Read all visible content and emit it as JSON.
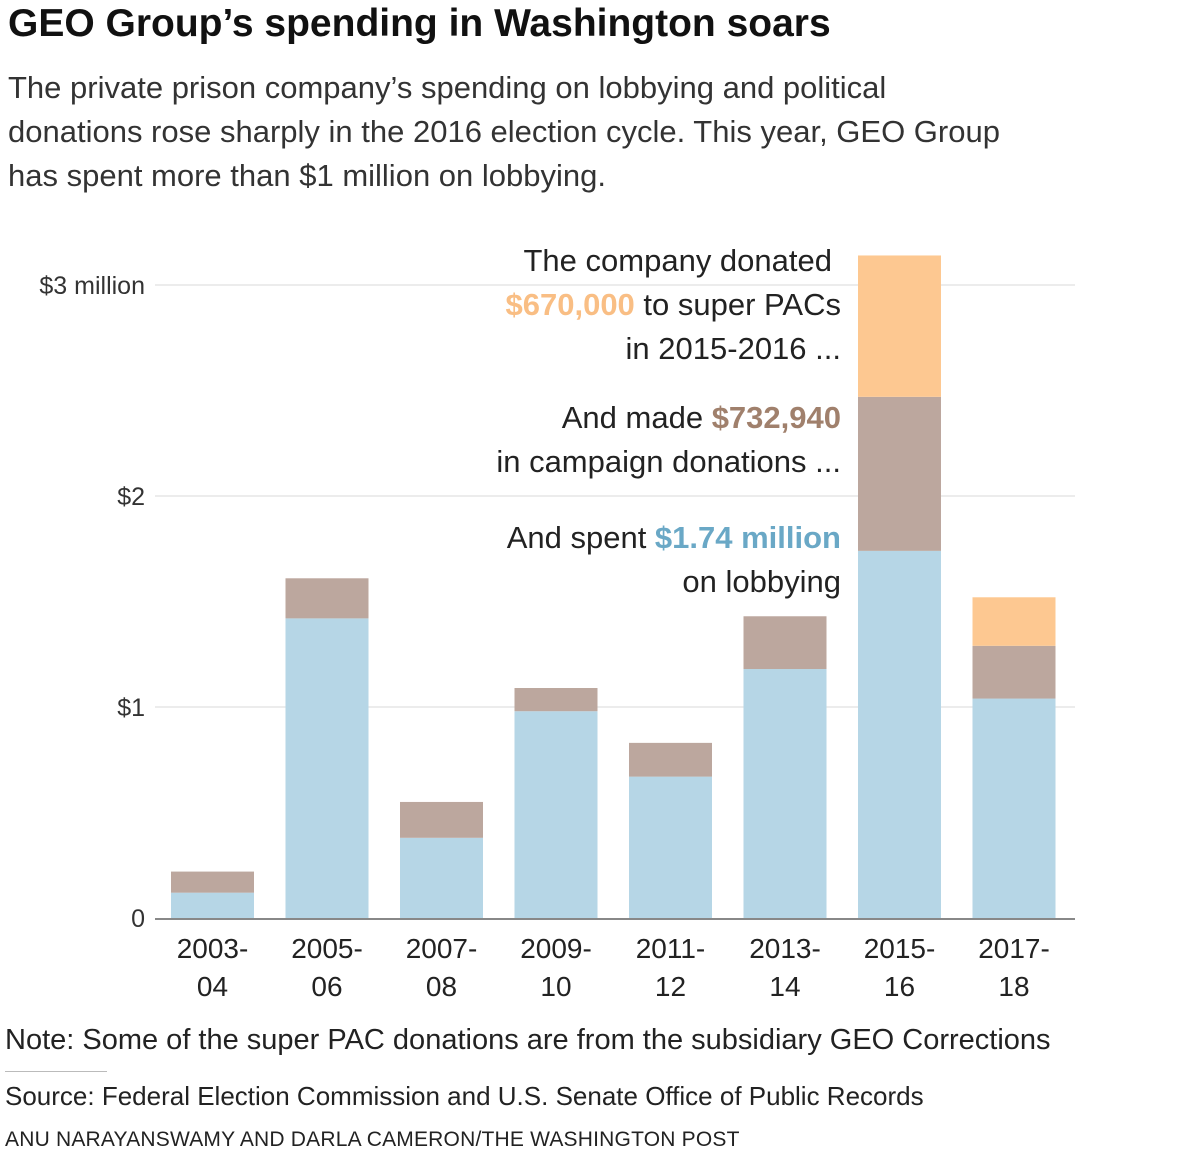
{
  "header": {
    "title": "GEO Group’s spending in Washington soars",
    "subtitle": "The private prison company’s spending on lobbying and political donations rose sharply in the 2016 election cycle. This year, GEO Group has spent more than $1 million on lobbying."
  },
  "colors": {
    "lobbying": "#b6d6e6",
    "campaign": "#bca79e",
    "super_pac": "#fdc891",
    "campaign_text": "#a0806c",
    "lobbying_text": "#6aa8c6",
    "super_pac_text": "#f9be84"
  },
  "chart_data": {
    "type": "bar",
    "stacked": true,
    "categories": [
      [
        "2003-",
        "04"
      ],
      [
        "2005-",
        "06"
      ],
      [
        "2007-",
        "08"
      ],
      [
        "2009-",
        "10"
      ],
      [
        "2011-",
        "12"
      ],
      [
        "2013-",
        "14"
      ],
      [
        "2015-",
        "16"
      ],
      [
        "2017-",
        "18"
      ]
    ],
    "series": [
      {
        "key": "lobbying",
        "values": [
          0.12,
          1.42,
          0.38,
          0.98,
          0.67,
          1.18,
          1.74,
          1.04
        ]
      },
      {
        "key": "campaign",
        "values": [
          0.1,
          0.19,
          0.17,
          0.11,
          0.16,
          0.25,
          0.73,
          0.25
        ]
      },
      {
        "key": "super_pac",
        "values": [
          0,
          0,
          0,
          0,
          0,
          0,
          0.67,
          0.23
        ]
      }
    ],
    "ylim": [
      0,
      3
    ],
    "yticks": [
      {
        "value": 0,
        "label": "0"
      },
      {
        "value": 1,
        "label": "$1"
      },
      {
        "value": 2,
        "label": "$2"
      },
      {
        "value": 3,
        "label": "$3 million"
      }
    ],
    "grid": true,
    "annotations": {
      "super_pac": {
        "pre": "The company donated",
        "value": "$670,000",
        "post": "to super PACs",
        "tail": "in 2015-2016 ..."
      },
      "campaign": {
        "pre": "And made",
        "value": "$732,940",
        "tail": "in campaign donations ..."
      },
      "lobbying": {
        "pre": "And spent",
        "value": "$1.74 million",
        "tail": "on lobbying"
      }
    }
  },
  "footer": {
    "note": "Note: Some of the super PAC donations are from the subsidiary GEO Corrections",
    "source": "Source: Federal Election Commission and U.S. Senate Office of Public Records",
    "credit": "ANU NARAYANSWAMY AND DARLA CAMERON/THE WASHINGTON POST"
  }
}
